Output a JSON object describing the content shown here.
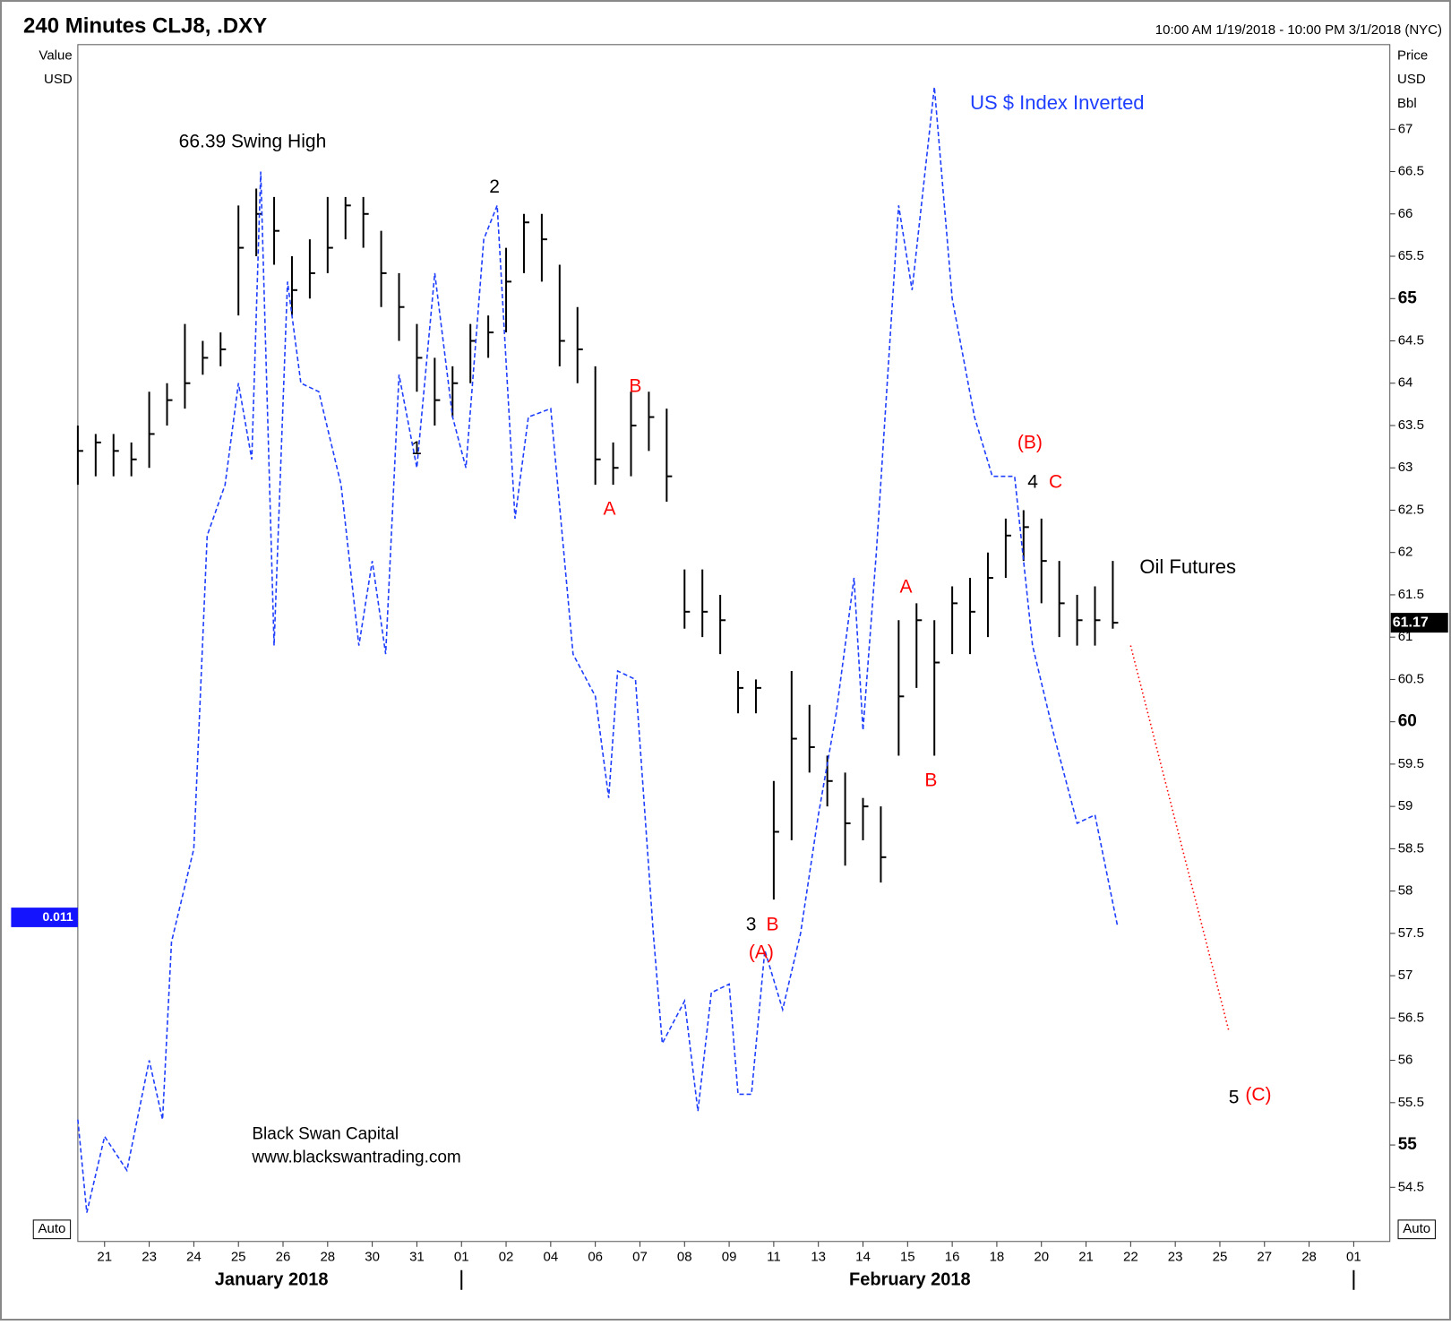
{
  "header": {
    "title": "240 Minutes CLJ8, .DXY",
    "range": "10:00 AM 1/19/2018 - 10:00 PM 3/1/2018 (NYC)"
  },
  "chart_data": {
    "type": "ohlc",
    "left_axis_labels": [
      "Value",
      "USD"
    ],
    "right_axis_labels": [
      "Price",
      "USD",
      "Bbl"
    ],
    "left_badge": 0.011,
    "xlim": [
      -0.6,
      28.81
    ],
    "ylim": [
      53.86,
      68.0
    ],
    "yticks": [
      54.5,
      55,
      55.5,
      56,
      56.5,
      57,
      57.5,
      58,
      58.5,
      59,
      59.5,
      60,
      60.5,
      61,
      61.5,
      62,
      62.5,
      63,
      63.5,
      64,
      64.5,
      65,
      65.5,
      66,
      66.5,
      67
    ],
    "xticks": [
      {
        "value": 0,
        "label": "21"
      },
      {
        "value": 1,
        "label": "23"
      },
      {
        "value": 2,
        "label": "24"
      },
      {
        "value": 3,
        "label": "25"
      },
      {
        "value": 4,
        "label": "26"
      },
      {
        "value": 5,
        "label": "28"
      },
      {
        "value": 6,
        "label": "30"
      },
      {
        "value": 7,
        "label": "31"
      },
      {
        "value": 8,
        "label": "01"
      },
      {
        "value": 9,
        "label": "02"
      },
      {
        "value": 10,
        "label": "04"
      },
      {
        "value": 11,
        "label": "06"
      },
      {
        "value": 12,
        "label": "07"
      },
      {
        "value": 13,
        "label": "08"
      },
      {
        "value": 14,
        "label": "09"
      },
      {
        "value": 15,
        "label": "11"
      },
      {
        "value": 16,
        "label": "13"
      },
      {
        "value": 17,
        "label": "14"
      },
      {
        "value": 18,
        "label": "15"
      },
      {
        "value": 19,
        "label": "16"
      },
      {
        "value": 20,
        "label": "18"
      },
      {
        "value": 21,
        "label": "20"
      },
      {
        "value": 22,
        "label": "21"
      },
      {
        "value": 23,
        "label": "22"
      },
      {
        "value": 24,
        "label": "23"
      },
      {
        "value": 25,
        "label": "25"
      },
      {
        "value": 26,
        "label": "27"
      },
      {
        "value": 27,
        "label": "28"
      },
      {
        "value": 28,
        "label": "01"
      }
    ],
    "months": [
      "January 2018",
      "February 2018"
    ],
    "series": [
      {
        "name": "Oil Futures",
        "type": "ohlc",
        "color": "#000000",
        "x": [
          -0.6,
          -0.2,
          0.2,
          0.6,
          1.0,
          1.4,
          1.8,
          2.2,
          2.6,
          3.0,
          3.4,
          3.8,
          4.2,
          4.6,
          5.0,
          5.4,
          5.8,
          6.2,
          6.6,
          7.0,
          7.4,
          7.8,
          8.2,
          8.6,
          9.0,
          9.4,
          9.8,
          10.2,
          10.6,
          11.0,
          11.4,
          11.8,
          12.2,
          12.6,
          13.0,
          13.4,
          13.8,
          14.2,
          14.6,
          15.0,
          15.4,
          15.8,
          16.2,
          16.6,
          17.0,
          17.4,
          17.8,
          18.2,
          18.6,
          19.0,
          19.4,
          19.8,
          20.2,
          20.6,
          21.0,
          21.4,
          21.8,
          22.2,
          22.6
        ],
        "high": [
          63.5,
          63.4,
          63.4,
          63.3,
          63.9,
          64.0,
          64.7,
          64.5,
          64.6,
          66.1,
          66.3,
          66.2,
          65.5,
          65.7,
          66.2,
          66.2,
          66.2,
          65.8,
          65.3,
          64.7,
          64.3,
          64.2,
          64.7,
          64.8,
          65.6,
          66.0,
          66.0,
          65.4,
          64.9,
          64.2,
          63.3,
          63.9,
          63.9,
          63.7,
          61.8,
          61.8,
          61.5,
          60.6,
          60.5,
          59.3,
          60.6,
          60.2,
          59.6,
          59.4,
          59.1,
          59.0,
          61.2,
          61.4,
          61.2,
          61.6,
          61.7,
          62.0,
          62.4,
          62.5,
          62.4,
          61.9,
          61.5,
          61.6,
          61.9
        ],
        "low": [
          62.8,
          62.9,
          62.9,
          62.9,
          63.0,
          63.5,
          63.7,
          64.1,
          64.2,
          64.8,
          65.5,
          65.4,
          64.8,
          65.0,
          65.3,
          65.7,
          65.6,
          64.9,
          64.5,
          63.9,
          63.5,
          63.6,
          64.0,
          64.3,
          64.6,
          65.3,
          65.2,
          64.2,
          64.0,
          62.8,
          62.8,
          62.9,
          63.2,
          62.6,
          61.1,
          61.0,
          60.8,
          60.1,
          60.1,
          57.9,
          58.6,
          59.4,
          59.0,
          58.3,
          58.6,
          58.1,
          59.6,
          60.4,
          59.6,
          60.8,
          60.8,
          61.0,
          61.7,
          61.9,
          61.4,
          61.0,
          60.9,
          60.9,
          61.1
        ],
        "close": [
          63.2,
          63.3,
          63.2,
          63.1,
          63.4,
          63.8,
          64.0,
          64.3,
          64.4,
          65.6,
          66.0,
          65.8,
          65.1,
          65.3,
          65.6,
          66.1,
          66.0,
          65.3,
          64.9,
          64.3,
          63.8,
          64.0,
          64.5,
          64.6,
          65.2,
          65.9,
          65.7,
          64.5,
          64.4,
          63.1,
          63.0,
          63.5,
          63.6,
          62.9,
          61.3,
          61.3,
          61.2,
          60.4,
          60.4,
          58.7,
          59.8,
          59.7,
          59.3,
          58.8,
          59.0,
          58.4,
          60.3,
          61.2,
          60.7,
          61.4,
          61.3,
          61.7,
          62.2,
          62.3,
          61.9,
          61.4,
          61.2,
          61.2,
          61.17
        ]
      },
      {
        "name": "US $ Index Inverted",
        "type": "line",
        "color": "#1f3fff",
        "x": [
          -0.6,
          -0.4,
          0,
          0.5,
          1.0,
          1.3,
          1.5,
          2.0,
          2.3,
          2.7,
          3.0,
          3.3,
          3.5,
          3.8,
          4.1,
          4.4,
          4.8,
          5.3,
          5.7,
          6.0,
          6.3,
          6.6,
          7.0,
          7.4,
          7.8,
          8.1,
          8.5,
          8.8,
          9.2,
          9.5,
          10.0,
          10.5,
          11.0,
          11.3,
          11.5,
          11.9,
          12.3,
          12.5,
          13.0,
          13.3,
          13.6,
          14.0,
          14.2,
          14.5,
          14.8,
          15.2,
          15.6,
          16.0,
          16.4,
          16.8,
          17.0,
          17.3,
          17.8,
          18.1,
          18.6,
          19.0,
          19.5,
          19.9,
          20.4,
          20.8,
          21.3,
          21.8,
          22.2,
          22.7
        ],
        "values": [
          55.3,
          54.2,
          55.1,
          54.7,
          56.0,
          55.3,
          57.4,
          58.5,
          62.2,
          62.8,
          64.0,
          63.1,
          66.5,
          60.9,
          65.2,
          64.0,
          63.9,
          62.8,
          60.9,
          61.9,
          60.8,
          64.1,
          63.0,
          65.3,
          63.6,
          63.0,
          65.7,
          66.1,
          62.4,
          63.6,
          63.7,
          60.8,
          60.3,
          59.1,
          60.6,
          60.5,
          57.5,
          56.2,
          56.7,
          55.4,
          56.8,
          56.9,
          55.6,
          55.6,
          57.3,
          56.6,
          57.5,
          58.9,
          60.1,
          61.7,
          59.9,
          62.0,
          66.1,
          65.1,
          67.5,
          65.0,
          63.6,
          62.9,
          62.9,
          60.9,
          59.8,
          58.8,
          58.9,
          57.6
        ]
      },
      {
        "type": "projection",
        "color": "#ff0000",
        "x": [
          23.0,
          25.2
        ],
        "values": [
          60.9,
          56.35
        ]
      }
    ],
    "annotations": [
      {
        "text": "66.39 Swing High",
        "color": "#000000"
      },
      {
        "text": "2",
        "color": "#000000"
      },
      {
        "text": "1",
        "color": "#000000"
      },
      {
        "text": "B",
        "color": "#ff0000"
      },
      {
        "text": "A",
        "color": "#ff0000"
      },
      {
        "text": "3",
        "color": "#000000"
      },
      {
        "text": "B",
        "color": "#ff0000"
      },
      {
        "text": "(A)",
        "color": "#ff0000"
      },
      {
        "text": "A",
        "color": "#ff0000"
      },
      {
        "text": "B",
        "color": "#ff0000"
      },
      {
        "text": "(B)",
        "color": "#ff0000"
      },
      {
        "text": "4",
        "color": "#000000"
      },
      {
        "text": "C",
        "color": "#ff0000"
      },
      {
        "text": "5",
        "color": "#000000"
      },
      {
        "text": "(C)",
        "color": "#ff0000"
      }
    ],
    "watermark": [
      "Black Swan Capital",
      "www.blackswantrading.com"
    ],
    "auto_buttons": [
      "Auto",
      "Auto"
    ]
  }
}
